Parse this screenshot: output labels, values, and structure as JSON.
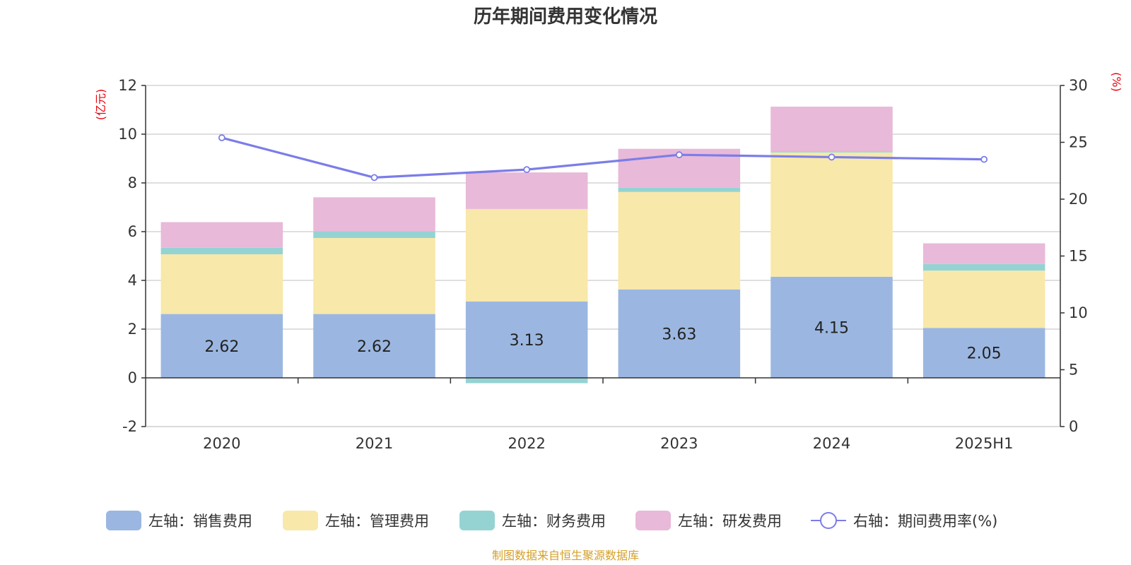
{
  "chart_data": {
    "type": "bar",
    "stacked": true,
    "title": "历年期间费用变化情况",
    "categories": [
      "2020",
      "2021",
      "2022",
      "2023",
      "2024",
      "2025H1"
    ],
    "left_axis": {
      "unit": "(亿元)",
      "ylim": [
        -2,
        12
      ],
      "ticks": [
        -2,
        0,
        2,
        4,
        6,
        8,
        10,
        12
      ]
    },
    "right_axis": {
      "unit": "(%)",
      "ylim": [
        0,
        30
      ],
      "ticks": [
        0,
        5,
        10,
        15,
        20,
        25,
        30
      ]
    },
    "series": [
      {
        "name": "左轴：销售费用",
        "color": "#9bb7e1",
        "axis": "left",
        "values": [
          2.62,
          2.62,
          3.13,
          3.63,
          4.15,
          2.05
        ],
        "labels": [
          "2.62",
          "2.62",
          "3.13",
          "3.63",
          "4.15",
          "2.05"
        ]
      },
      {
        "name": "左轴：管理费用",
        "color": "#f8e8a9",
        "axis": "left",
        "values": [
          2.45,
          3.12,
          3.8,
          4.0,
          5.1,
          2.35
        ]
      },
      {
        "name": "左轴：财务费用",
        "color": "#95d3d3",
        "axis": "left",
        "values": [
          0.27,
          0.27,
          -0.22,
          0.17,
          0.05,
          0.27
        ]
      },
      {
        "name": "左轴：研发费用",
        "color": "#e8b9d9",
        "axis": "left",
        "values": [
          1.05,
          1.4,
          1.5,
          1.6,
          1.83,
          0.85
        ]
      },
      {
        "name": "右轴：期间费用率(%)",
        "color": "#7b7de8",
        "axis": "right",
        "type": "line",
        "values": [
          25.4,
          21.9,
          22.6,
          23.9,
          23.7,
          23.5
        ]
      }
    ],
    "grid": true,
    "legend_position": "bottom"
  },
  "source_note": "制图数据来自恒生聚源数据库"
}
